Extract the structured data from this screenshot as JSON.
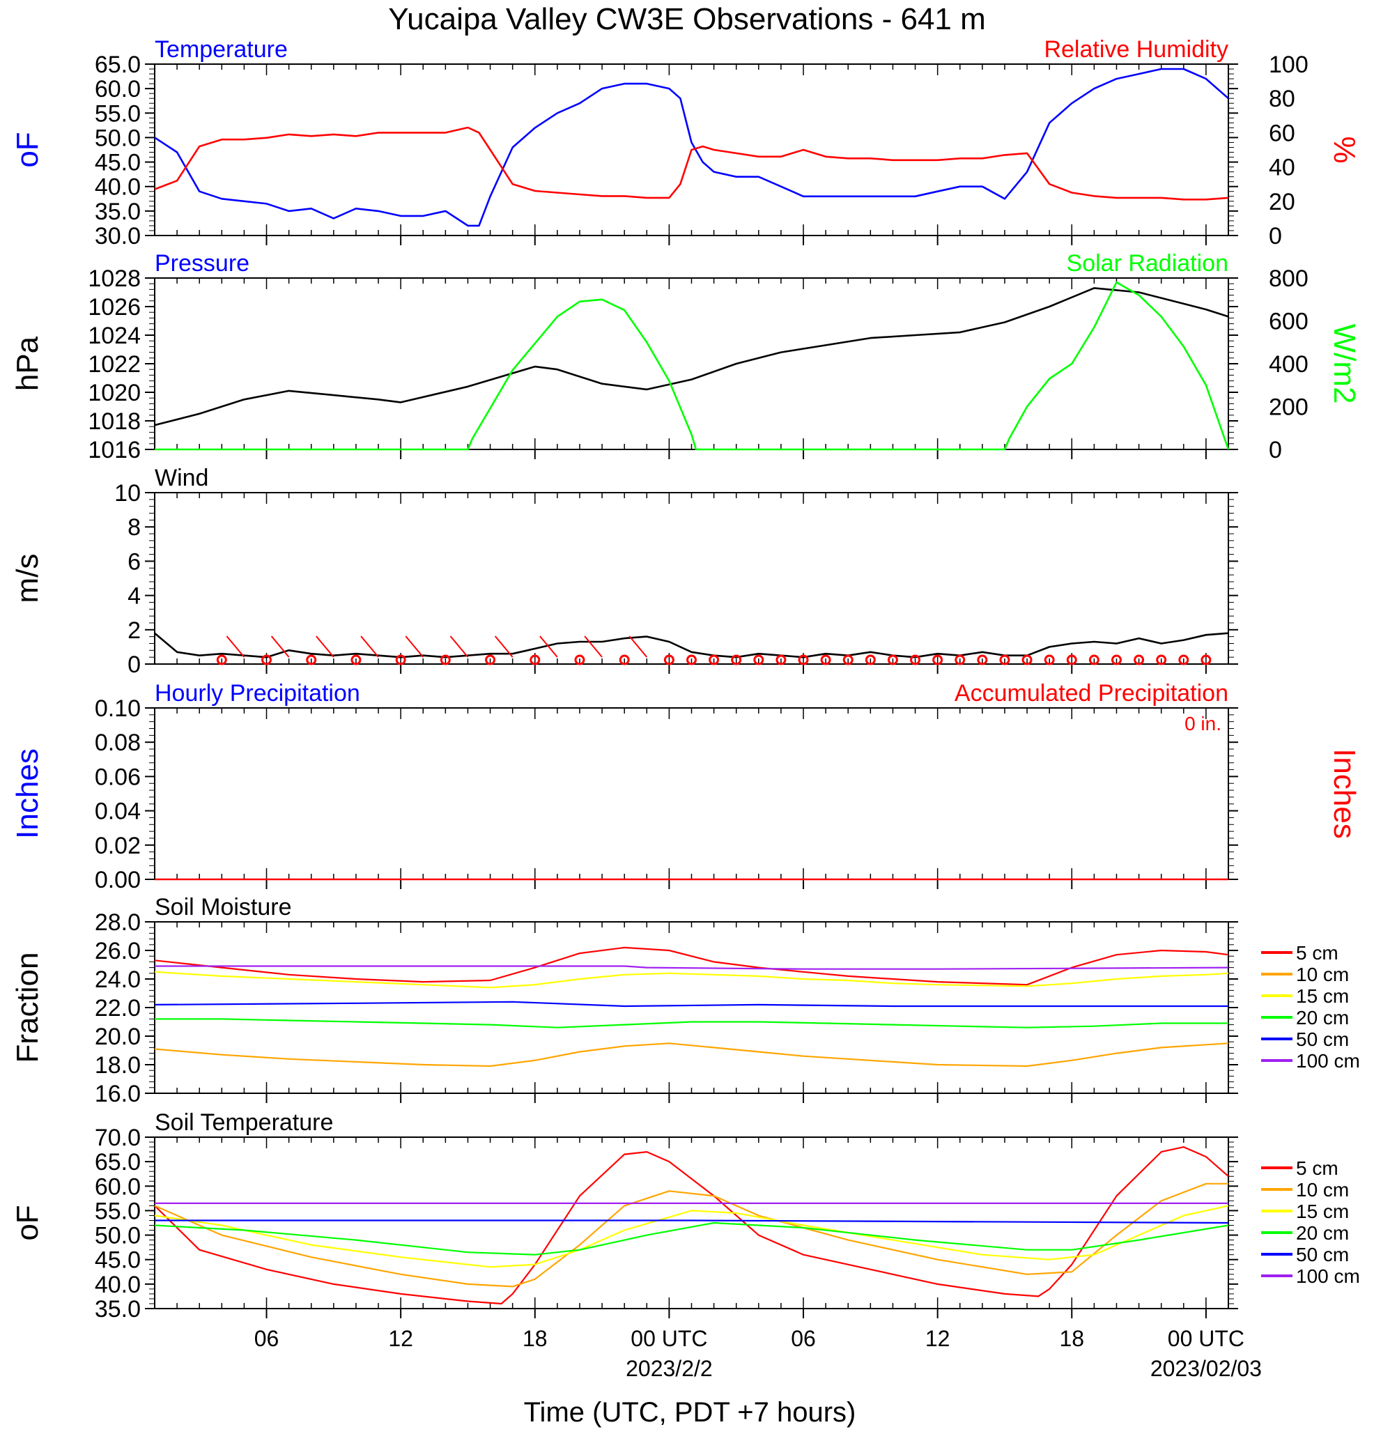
{
  "page": {
    "title": "Yucaipa Valley CW3E Observations - 641 m",
    "x_axis_label": "Time (UTC, PDT +7 hours)",
    "x_ticks": [
      "06",
      "12",
      "18",
      "00 UTC",
      "06",
      "12",
      "18",
      "00 UTC"
    ],
    "date_labels": [
      "2023/2/2",
      "2023/02/03"
    ],
    "colors": {
      "blue": "#0000ff",
      "red": "#ff0000",
      "green": "#00ff00",
      "black": "#000000",
      "orange": "#ffa500",
      "yellow": "#ffff00",
      "purple": "#a020f0"
    }
  },
  "chart_data": [
    {
      "type": "line",
      "panel": "temperature-rh",
      "title_left": "Temperature",
      "title_right": "Relative Humidity",
      "ylabel_left": "oF",
      "ylabel_right": "%",
      "ylim_left": [
        30,
        65
      ],
      "ylim_right": [
        0,
        100
      ],
      "yticks_left": [
        "30.0",
        "35.0",
        "40.0",
        "45.0",
        "50.0",
        "55.0",
        "60.0",
        "65.0"
      ],
      "yticks_right": [
        "0",
        "20",
        "40",
        "60",
        "80",
        "100"
      ],
      "x_hours_range": [
        1,
        49
      ],
      "series": [
        {
          "name": "Temperature",
          "axis": "left",
          "color": "#0000ff",
          "x": [
            1,
            2,
            3,
            4,
            5,
            6,
            7,
            8,
            9,
            10,
            11,
            12,
            13,
            14,
            15,
            15.5,
            16,
            17,
            18,
            19,
            20,
            21,
            22,
            23,
            24,
            24.5,
            25,
            25.5,
            26,
            27,
            28,
            29,
            30,
            31,
            32,
            33,
            34,
            35,
            36,
            37,
            38,
            39,
            40,
            41,
            42,
            43,
            44,
            45,
            46,
            47,
            48,
            49
          ],
          "y": [
            50,
            47,
            39,
            37.5,
            37,
            36.5,
            35,
            35.5,
            33.5,
            35.5,
            35,
            34,
            34,
            35,
            32,
            32,
            38,
            48,
            52,
            55,
            57,
            60,
            61,
            61,
            60,
            58,
            49,
            45,
            43,
            42,
            42,
            40,
            38,
            38,
            38,
            38,
            38,
            38,
            39,
            40,
            40,
            37.5,
            43,
            53,
            57,
            60,
            62,
            63,
            64,
            64,
            62,
            58
          ]
        },
        {
          "name": "Relative Humidity",
          "axis": "right",
          "color": "#ff0000",
          "x": [
            1,
            2,
            3,
            4,
            5,
            6,
            7,
            8,
            9,
            10,
            11,
            12,
            13,
            14,
            15,
            15.5,
            16,
            17,
            18,
            19,
            20,
            21,
            22,
            23,
            24,
            24.5,
            25,
            25.5,
            26,
            27,
            28,
            29,
            30,
            31,
            32,
            33,
            34,
            35,
            36,
            37,
            38,
            39,
            40,
            41,
            42,
            43,
            44,
            45,
            46,
            47,
            48,
            49
          ],
          "y": [
            27,
            32,
            52,
            56,
            56,
            57,
            59,
            58,
            59,
            58,
            60,
            60,
            60,
            60,
            63,
            60,
            50,
            30,
            26,
            25,
            24,
            23,
            23,
            22,
            22,
            30,
            50,
            52,
            50,
            48,
            46,
            46,
            50,
            46,
            45,
            45,
            44,
            44,
            44,
            45,
            45,
            47,
            48,
            30,
            25,
            23,
            22,
            22,
            22,
            21,
            21,
            22
          ]
        }
      ]
    },
    {
      "type": "line",
      "panel": "pressure-solar",
      "title_left": "Pressure",
      "title_right": "Solar Radiation",
      "ylabel_left": "hPa",
      "ylabel_right": "W/m2",
      "ylim_left": [
        1016,
        1028
      ],
      "ylim_right": [
        0,
        800
      ],
      "yticks_left": [
        "1016",
        "1018",
        "1020",
        "1022",
        "1024",
        "1026",
        "1028"
      ],
      "yticks_right": [
        "0",
        "200",
        "400",
        "600",
        "800"
      ],
      "x_hours_range": [
        1,
        49
      ],
      "series": [
        {
          "name": "Pressure",
          "axis": "left",
          "color": "#000000",
          "x": [
            1,
            3,
            5,
            7,
            9,
            11,
            12,
            15,
            18,
            19,
            21,
            23,
            25,
            27,
            29,
            31,
            33,
            35,
            37,
            39,
            41,
            43,
            45,
            47,
            48,
            49
          ],
          "y": [
            1017.7,
            1018.5,
            1019.5,
            1020.1,
            1019.8,
            1019.5,
            1019.3,
            1020.4,
            1021.8,
            1021.6,
            1020.6,
            1020.2,
            1020.9,
            1022,
            1022.8,
            1023.3,
            1023.8,
            1024,
            1024.2,
            1024.9,
            1026,
            1027.3,
            1027,
            1026.2,
            1025.8,
            1025.3
          ]
        },
        {
          "name": "Solar Radiation",
          "axis": "right",
          "color": "#00ff00",
          "x": [
            1,
            15,
            15.2,
            17,
            19,
            20,
            21,
            22,
            23,
            24,
            25,
            25.2,
            26,
            39,
            39.2,
            40,
            41,
            42,
            43,
            44,
            45,
            46,
            47,
            48,
            49
          ],
          "y": [
            0,
            0,
            50,
            370,
            620,
            690,
            700,
            650,
            500,
            320,
            70,
            0,
            0,
            0,
            50,
            200,
            330,
            400,
            570,
            780,
            720,
            620,
            480,
            300,
            0
          ]
        }
      ]
    },
    {
      "type": "line",
      "panel": "wind",
      "title": "Wind",
      "ylabel": "m/s",
      "ylim": [
        0,
        10
      ],
      "yticks": [
        "0",
        "2",
        "4",
        "6",
        "8",
        "10"
      ],
      "x_hours_range": [
        1,
        49
      ],
      "series": [
        {
          "name": "Wind speed",
          "color": "#000000",
          "x": [
            1,
            2,
            3,
            4,
            5,
            6,
            7,
            8,
            9,
            10,
            11,
            12,
            13,
            14,
            15,
            16,
            17,
            18,
            19,
            20,
            21,
            22,
            23,
            24,
            25,
            26,
            27,
            28,
            29,
            30,
            31,
            32,
            33,
            34,
            35,
            36,
            37,
            38,
            39,
            40,
            41,
            42,
            43,
            44,
            45,
            46,
            47,
            48,
            49
          ],
          "y": [
            1.8,
            0.7,
            0.5,
            0.6,
            0.5,
            0.4,
            0.8,
            0.6,
            0.5,
            0.6,
            0.5,
            0.4,
            0.5,
            0.4,
            0.5,
            0.6,
            0.6,
            0.9,
            1.2,
            1.3,
            1.3,
            1.5,
            1.6,
            1.3,
            0.7,
            0.5,
            0.4,
            0.6,
            0.5,
            0.4,
            0.6,
            0.5,
            0.7,
            0.5,
            0.4,
            0.6,
            0.5,
            0.7,
            0.5,
            0.5,
            1.0,
            1.2,
            1.3,
            1.2,
            1.5,
            1.2,
            1.4,
            1.7,
            1.8
          ]
        }
      ]
    },
    {
      "type": "line",
      "panel": "precipitation",
      "title_left": "Hourly Precipitation",
      "title_right": "Accumulated Precipitation",
      "annotation": "0 in.",
      "ylabel_left": "Inches",
      "ylabel_right": "Inches",
      "ylim": [
        0,
        0.1
      ],
      "yticks": [
        "0.00",
        "0.02",
        "0.04",
        "0.06",
        "0.08",
        "0.10"
      ],
      "x_hours_range": [
        1,
        49
      ],
      "series": [
        {
          "name": "Accumulated Precipitation",
          "color": "#ff0000",
          "x": [
            1,
            49
          ],
          "y": [
            0,
            0
          ]
        }
      ]
    },
    {
      "type": "line",
      "panel": "soil-moisture",
      "title": "Soil Moisture",
      "ylabel": "Fraction",
      "ylim": [
        16,
        28
      ],
      "yticks": [
        "16.0",
        "18.0",
        "20.0",
        "22.0",
        "24.0",
        "26.0",
        "28.0"
      ],
      "x_hours_range": [
        1,
        49
      ],
      "series": [
        {
          "name": "5 cm",
          "color": "#ff0000",
          "x": [
            1,
            4,
            7,
            10,
            13,
            16,
            18,
            20,
            22,
            24,
            26,
            28,
            30,
            32,
            34,
            36,
            40,
            42,
            44,
            46,
            48,
            49
          ],
          "y": [
            25.3,
            24.8,
            24.3,
            24,
            23.8,
            23.9,
            24.8,
            25.8,
            26.2,
            26,
            25.2,
            24.8,
            24.5,
            24.2,
            24,
            23.8,
            23.6,
            24.8,
            25.7,
            26,
            25.9,
            25.7
          ]
        },
        {
          "name": "10 cm",
          "color": "#ffa500",
          "x": [
            1,
            4,
            7,
            10,
            13,
            16,
            18,
            20,
            22,
            24,
            26,
            28,
            30,
            32,
            34,
            36,
            40,
            42,
            44,
            46,
            48,
            49
          ],
          "y": [
            19.1,
            18.7,
            18.4,
            18.2,
            18,
            17.9,
            18.3,
            18.9,
            19.3,
            19.5,
            19.2,
            18.9,
            18.6,
            18.4,
            18.2,
            18,
            17.9,
            18.3,
            18.8,
            19.2,
            19.4,
            19.5
          ]
        },
        {
          "name": "15 cm",
          "color": "#ffff00",
          "x": [
            1,
            4,
            7,
            10,
            13,
            16,
            18,
            20,
            22,
            24,
            26,
            28,
            30,
            32,
            34,
            36,
            40,
            42,
            44,
            46,
            48,
            49
          ],
          "y": [
            24.5,
            24.2,
            24,
            23.8,
            23.6,
            23.4,
            23.6,
            24,
            24.3,
            24.4,
            24.3,
            24.2,
            24,
            23.9,
            23.7,
            23.6,
            23.5,
            23.7,
            24,
            24.2,
            24.3,
            24.4
          ]
        },
        {
          "name": "20 cm",
          "color": "#00ff00",
          "x": [
            1,
            4,
            7,
            10,
            13,
            16,
            19,
            22,
            25,
            28,
            31,
            34,
            37,
            40,
            43,
            46,
            49
          ],
          "y": [
            21.2,
            21.2,
            21.1,
            21,
            20.9,
            20.8,
            20.6,
            20.8,
            21,
            21,
            20.9,
            20.8,
            20.7,
            20.6,
            20.7,
            20.9,
            20.9
          ]
        },
        {
          "name": "50 cm",
          "color": "#0000ff",
          "x": [
            1,
            10,
            17,
            22,
            28,
            34,
            40,
            49
          ],
          "y": [
            22.2,
            22.3,
            22.4,
            22.1,
            22.2,
            22.1,
            22.1,
            22.1
          ]
        },
        {
          "name": "100 cm",
          "color": "#a020f0",
          "x": [
            1,
            22,
            23,
            30,
            36,
            49
          ],
          "y": [
            24.9,
            24.9,
            24.8,
            24.7,
            24.7,
            24.8
          ]
        }
      ]
    },
    {
      "type": "line",
      "panel": "soil-temperature",
      "title": "Soil Temperature",
      "ylabel": "oF",
      "ylim": [
        35,
        70
      ],
      "yticks": [
        "35.0",
        "40.0",
        "45.0",
        "50.0",
        "55.0",
        "60.0",
        "65.0",
        "70.0"
      ],
      "xlabel": "Time (UTC, PDT +7 hours)",
      "x_hours_range": [
        1,
        49
      ],
      "series": [
        {
          "name": "5 cm",
          "color": "#ff0000",
          "x": [
            1,
            3,
            6,
            9,
            12,
            15,
            16.5,
            17,
            18,
            20,
            22,
            23,
            24,
            26,
            28,
            30,
            33,
            36,
            39,
            40.5,
            41,
            42,
            44,
            46,
            47,
            48,
            49
          ],
          "y": [
            56,
            47,
            43,
            40,
            38,
            36.5,
            36,
            38,
            44,
            58,
            66.5,
            67,
            65,
            58,
            50,
            46,
            43,
            40,
            38,
            37.5,
            39,
            44,
            58,
            67,
            68,
            66,
            62
          ]
        },
        {
          "name": "10 cm",
          "color": "#ffa500",
          "x": [
            1,
            4,
            8,
            12,
            15,
            17,
            18,
            20,
            22,
            24,
            26,
            28,
            32,
            36,
            40,
            42,
            44,
            46,
            48,
            49
          ],
          "y": [
            56,
            50,
            45.5,
            42,
            40,
            39.5,
            41,
            48,
            56,
            59,
            58,
            54,
            49,
            45,
            42,
            42.5,
            50,
            57,
            60.5,
            60.5
          ]
        },
        {
          "name": "15 cm",
          "color": "#ffff00",
          "x": [
            1,
            4,
            8,
            12,
            16,
            18,
            20,
            22,
            25,
            27,
            30,
            34,
            38,
            41,
            43,
            45,
            47,
            49
          ],
          "y": [
            54,
            52,
            48,
            45.5,
            43.5,
            44,
            47,
            51,
            55,
            54.5,
            52,
            49,
            46,
            45,
            46,
            50,
            54,
            56
          ]
        },
        {
          "name": "20 cm",
          "color": "#00ff00",
          "x": [
            1,
            5,
            10,
            15,
            18,
            20,
            23,
            26,
            30,
            35,
            40,
            42,
            45,
            49
          ],
          "y": [
            52,
            51,
            49,
            46.5,
            46,
            47,
            50,
            52.5,
            51.5,
            49,
            47,
            47,
            49,
            52
          ]
        },
        {
          "name": "50 cm",
          "color": "#0000ff",
          "x": [
            1,
            25,
            49
          ],
          "y": [
            53,
            53,
            52.5
          ]
        },
        {
          "name": "100 cm",
          "color": "#a020f0",
          "x": [
            1,
            49
          ],
          "y": [
            56.5,
            56.5
          ]
        }
      ]
    }
  ]
}
